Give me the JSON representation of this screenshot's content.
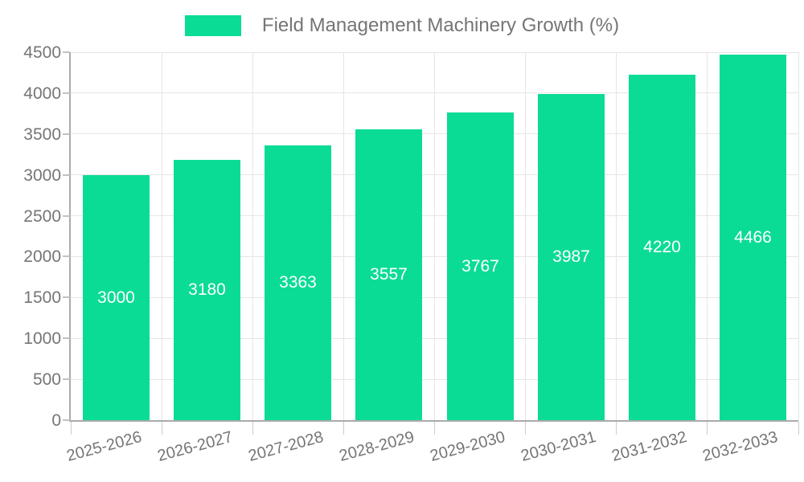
{
  "legend": {
    "label": "Field Management Machinery Growth (%)"
  },
  "colors": {
    "bar": "#0BDC95",
    "axis_text": "#757575",
    "title_text": "#757575",
    "grid_line": "#E6E6E6",
    "axis_line": "#ABABAB",
    "tick_mark": "#CCCCCC",
    "bar_label_text": "#FFFFFF",
    "background": "#FFFFFF"
  },
  "chart_data": {
    "type": "bar",
    "title": "Field Management Machinery Growth (%)",
    "categories": [
      "2025-2026",
      "2026-2027",
      "2027-2028",
      "2028-2029",
      "2029-2030",
      "2030-2031",
      "2031-2032",
      "2032-2033"
    ],
    "values": [
      3000,
      3180,
      3363,
      3557,
      3767,
      3987,
      4220,
      4466
    ],
    "bar_labels": [
      3000,
      3180,
      3363,
      3557,
      3767,
      3987,
      4220,
      4466
    ],
    "xlabel": "",
    "ylabel": "",
    "ylim": [
      0,
      4500
    ],
    "ytick_step": 500,
    "yticks": [
      0,
      500,
      1000,
      1500,
      2000,
      2500,
      3000,
      3500,
      4000,
      4500
    ],
    "grid": true,
    "legend_position": "top-center",
    "bar_label_position": "inside-center",
    "x_label_rotation_deg": -15
  }
}
